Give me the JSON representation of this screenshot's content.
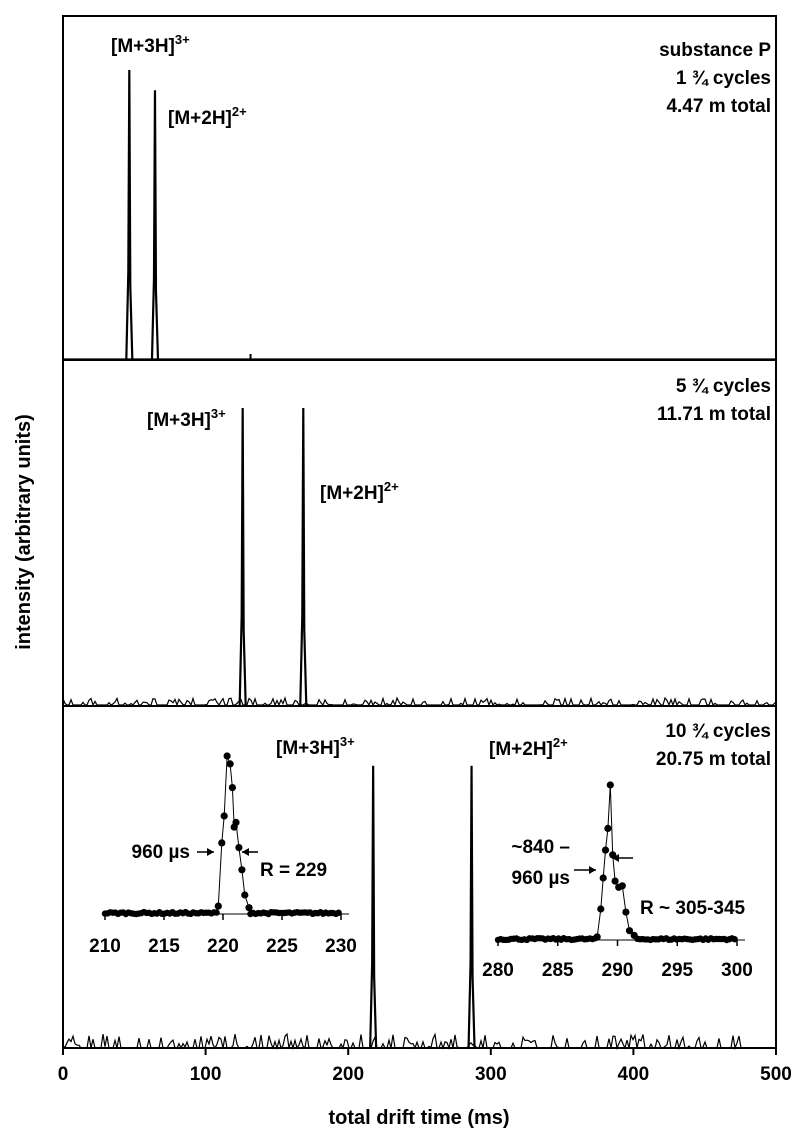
{
  "chart_data": {
    "type": "line",
    "xlabel": "total drift time (ms)",
    "ylabel": "intensity (arbitrary units)",
    "xlim": [
      0,
      500
    ],
    "xticks": [
      "0",
      "100",
      "200",
      "300",
      "400",
      "500"
    ],
    "grid": false,
    "panels": [
      {
        "info": [
          "substance P",
          "1 ¾ cycles",
          "4.47 m total"
        ],
        "peaks": [
          {
            "label": "[M+3H]",
            "charge": "3+",
            "x": 46.5,
            "height": 1.0
          },
          {
            "label": "[M+2H]",
            "charge": "2+",
            "x": 64.5,
            "height": 0.93
          }
        ],
        "minor_peaks": [
          {
            "x": 131.5,
            "height": 0.015
          }
        ]
      },
      {
        "info": [
          "5 ¾ cycles",
          "11.71 m total"
        ],
        "peaks": [
          {
            "label": "[M+3H]",
            "charge": "3+",
            "x": 126.0,
            "height": 1.0
          },
          {
            "label": "[M+2H]",
            "charge": "2+",
            "x": 168.5,
            "height": 1.0
          }
        ]
      },
      {
        "info": [
          "10 ¾ cycles",
          "20.75 m total"
        ],
        "peaks": [
          {
            "label": "[M+3H]",
            "charge": "3+",
            "x": 217.5,
            "height": 0.98
          },
          {
            "label": "[M+2H]",
            "charge": "2+",
            "x": 286.5,
            "height": 0.98
          }
        ],
        "insets": [
          {
            "xlim": [
              210,
              230
            ],
            "xticks": [
              "210",
              "215",
              "220",
              "225",
              "230"
            ],
            "fwhm_label": "960 µs",
            "resolution_label": "R = 229",
            "points": [
              [
                219.6,
                0.05
              ],
              [
                219.9,
                0.45
              ],
              [
                220.1,
                0.62
              ],
              [
                220.35,
                1.0
              ],
              [
                220.6,
                0.95
              ],
              [
                220.8,
                0.8
              ],
              [
                220.95,
                0.55
              ],
              [
                221.1,
                0.58
              ],
              [
                221.35,
                0.42
              ],
              [
                221.6,
                0.28
              ],
              [
                221.85,
                0.12
              ],
              [
                222.2,
                0.04
              ]
            ]
          },
          {
            "xlim": [
              280,
              300
            ],
            "xticks": [
              "280",
              "285",
              "290",
              "295",
              "300"
            ],
            "fwhm_label": [
              "~840 –",
              "960 µs"
            ],
            "resolution_label": "R ~ 305-345",
            "points": [
              [
                288.3,
                0.02
              ],
              [
                288.6,
                0.2
              ],
              [
                288.8,
                0.4
              ],
              [
                289.0,
                0.58
              ],
              [
                289.2,
                0.72
              ],
              [
                289.4,
                1.0
              ],
              [
                289.6,
                0.55
              ],
              [
                289.8,
                0.38
              ],
              [
                290.1,
                0.34
              ],
              [
                290.4,
                0.35
              ],
              [
                290.7,
                0.18
              ],
              [
                291.0,
                0.06
              ],
              [
                291.4,
                0.03
              ]
            ]
          }
        ]
      }
    ]
  }
}
